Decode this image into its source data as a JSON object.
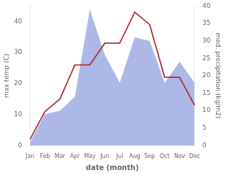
{
  "chart_data": {
    "type": "line",
    "xlabel": "date (month)",
    "ylabel": "max temp (C)",
    "y2label": "med. precipitation (kg/m2)",
    "categories": [
      "Jan",
      "Feb",
      "Mar",
      "Apr",
      "May",
      "Jun",
      "Jul",
      "Aug",
      "Sep",
      "Oct",
      "Nov",
      "Dec"
    ],
    "series": [
      {
        "type": "area",
        "axis": "y2",
        "color": "#aeb8e8",
        "values": [
          1,
          9,
          10,
          14,
          39,
          26,
          18,
          31,
          30,
          18,
          24,
          18
        ]
      },
      {
        "type": "line",
        "color": "#b03030",
        "values": [
          2,
          11,
          15,
          26,
          26,
          33,
          33,
          43,
          39,
          22,
          22,
          13
        ]
      }
    ],
    "ylim": [
      0,
      45
    ],
    "yticks": [
      0,
      10,
      20,
      30,
      40
    ],
    "y2lim": [
      0,
      40
    ],
    "y2ticks": [
      0,
      5,
      10,
      15,
      20,
      25,
      30,
      35,
      40
    ],
    "grid": false
  }
}
